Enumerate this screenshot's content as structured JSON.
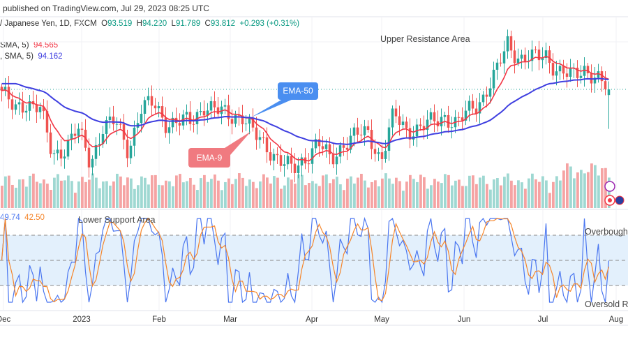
{
  "header": {
    "published": "published on TradingView.com, Jul 29, 2023 08:25 UTC"
  },
  "symbol": {
    "name": "/ Japanese Yen, 1D, FXCM",
    "open_label": "O",
    "open": "93.519",
    "high_label": "H",
    "high": "94.220",
    "low_label": "L",
    "low": "91.789",
    "close_label": "C",
    "close": "93.812",
    "change": "+0.293 (+0.31%)"
  },
  "legend": {
    "ema_fast_label": "SMA, 5)",
    "ema_fast_value": "94.565",
    "ema_slow_label": ", SMA, 5)",
    "ema_slow_value": "94.162",
    "stoch_k": "49.74",
    "stoch_d": "42.50"
  },
  "annotations": {
    "upper": "Upper Resistance Area",
    "lower": "Lower Support Area",
    "ema50": "EMA-50",
    "ema9": "EMA-9",
    "overbought": "Overbought",
    "oversold": "Oversold Re"
  },
  "colors": {
    "up": "#26a69a",
    "down": "#ef5350",
    "ema9": "#f23645",
    "ema50": "#3f3fe0",
    "stoch_k": "#4a76f0",
    "stoch_d": "#f5852a",
    "callout_blue": "#4a8ef0",
    "callout_red": "#f07a80"
  },
  "chart_data": {
    "type": "candlestick",
    "x_ticks": [
      "Dec",
      "2023",
      "Feb",
      "Mar",
      "Apr",
      "May",
      "Jun",
      "Jul",
      "Aug"
    ],
    "close_trace": [
      93.74,
      92.67,
      93.2,
      92.9,
      90.35,
      90.88,
      91.78,
      89.99,
      91.95,
      92.1,
      90.7,
      92.85,
      93.03,
      92.13,
      92.13,
      92.13,
      93.03,
      92.67,
      92.49,
      92.49,
      91.42,
      90.88,
      90.17,
      89.63,
      90.35,
      91.06,
      90.17,
      91.06,
      91.42,
      91.6,
      90.17,
      92.49,
      91.78,
      91.78,
      92.1,
      92.49,
      91.95,
      92.8,
      93.38,
      94.45,
      96.24,
      95.35,
      95.35,
      95.7,
      94.63,
      94.45,
      94.99,
      94.27,
      93.81
    ],
    "indicators": [
      "EMA-9",
      "EMA-50",
      "Volume",
      "Stochastic"
    ],
    "stoch_levels": [
      80,
      50,
      20
    ]
  }
}
